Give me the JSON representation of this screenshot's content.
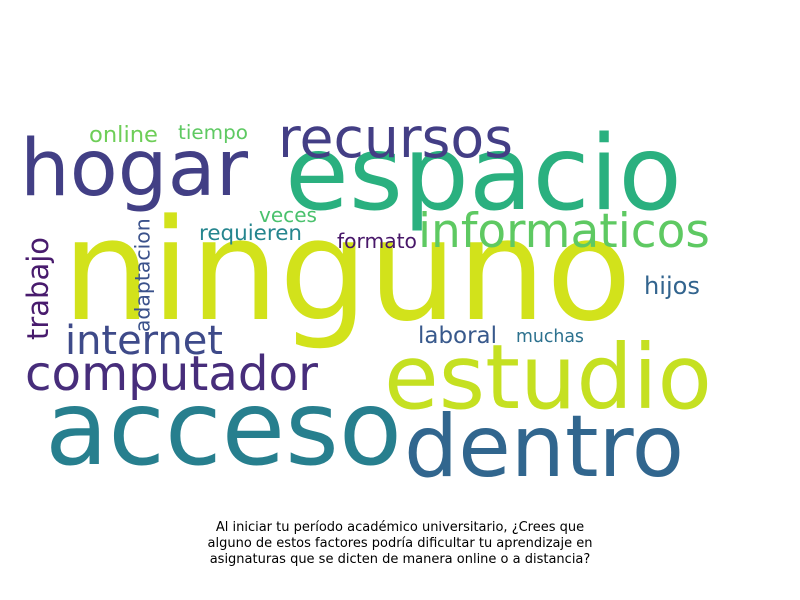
{
  "wordcloud": {
    "words": [
      {
        "text": "ninguno",
        "color": "#d2e21b"
      },
      {
        "text": "espacio",
        "color": "#2ab07f"
      },
      {
        "text": "hogar",
        "color": "#423f85"
      },
      {
        "text": "acceso",
        "color": "#277f8e"
      },
      {
        "text": "dentro",
        "color": "#31668e"
      },
      {
        "text": "estudio",
        "color": "#c5e021"
      },
      {
        "text": "recursos",
        "color": "#433e85"
      },
      {
        "text": "computador",
        "color": "#472d7b"
      },
      {
        "text": "informaticos",
        "color": "#5ec962"
      },
      {
        "text": "internet",
        "color": "#3e4a89"
      },
      {
        "text": "trabajo",
        "color": "#481b6d"
      },
      {
        "text": "adaptacion",
        "color": "#3b528b"
      },
      {
        "text": "online",
        "color": "#6ece58"
      },
      {
        "text": "tiempo",
        "color": "#5ec962"
      },
      {
        "text": "veces",
        "color": "#4ac16d"
      },
      {
        "text": "requieren",
        "color": "#25858e"
      },
      {
        "text": "formato",
        "color": "#481769"
      },
      {
        "text": "hijos",
        "color": "#32648e"
      },
      {
        "text": "laboral",
        "color": "#38598c"
      },
      {
        "text": "muchas",
        "color": "#2c718e"
      }
    ]
  },
  "caption": {
    "line1": "Al iniciar tu período académico universitario, ¿Crees que",
    "line2": "alguno de estos factores podría dificultar tu aprendizaje en",
    "line3": "asignaturas que se dicten de manera online o a distancia?"
  }
}
